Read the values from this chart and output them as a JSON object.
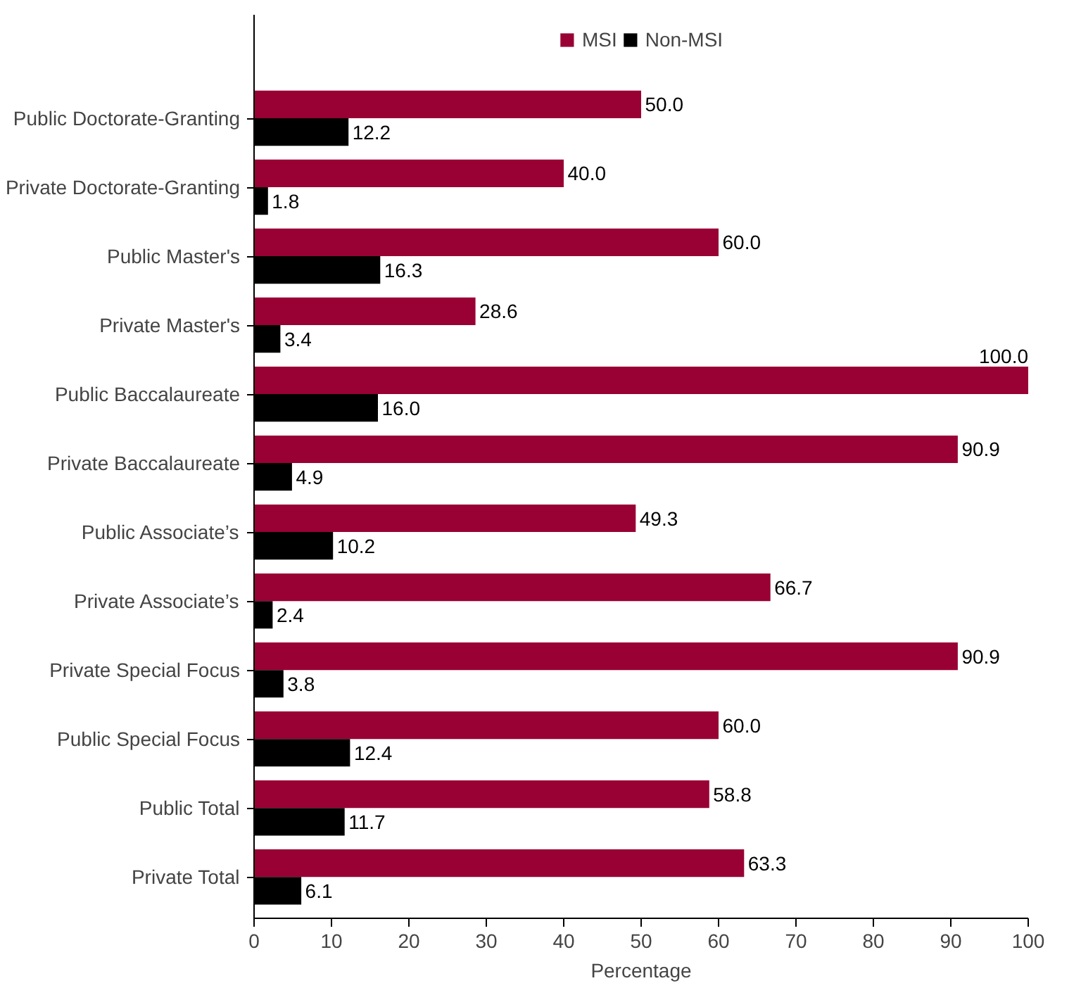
{
  "chart_data": {
    "type": "bar",
    "orientation": "horizontal",
    "xlabel": "Percentage",
    "categories": [
      "Public Doctorate-Granting",
      "Private Doctorate-Granting",
      "Public Master's",
      "Private Master's",
      "Public Baccalaureate",
      "Private Baccalaureate",
      "Public Associate’s",
      "Private Associate’s",
      "Private Special Focus",
      "Public Special Focus",
      "Public Total",
      "Private Total"
    ],
    "series": [
      {
        "name": "MSI",
        "color": "#990033",
        "values": [
          50.0,
          40.0,
          60.0,
          28.6,
          100.0,
          90.9,
          49.3,
          66.7,
          90.9,
          60.0,
          58.8,
          63.3
        ],
        "value_labels": [
          "50.0",
          "40.0",
          "60.0",
          "28.6",
          "100.0",
          "90.9",
          "49.3",
          "66.7",
          "90.9",
          "60.0",
          "58.8",
          "63.3"
        ]
      },
      {
        "name": "Non-MSI",
        "color": "#000000",
        "values": [
          12.2,
          1.8,
          16.3,
          3.4,
          16.0,
          4.9,
          10.2,
          2.4,
          3.8,
          12.4,
          11.7,
          6.1
        ],
        "value_labels": [
          "12.2",
          "1.8",
          "16.3",
          "3.4",
          "16.0",
          "4.9",
          "10.2",
          "2.4",
          "3.8",
          "12.4",
          "11.7",
          "6.1"
        ]
      }
    ],
    "xlim": [
      0,
      100
    ],
    "xticks": [
      0,
      10,
      20,
      30,
      40,
      50,
      60,
      70,
      80,
      90,
      100
    ],
    "grid": false,
    "legend": "top"
  }
}
